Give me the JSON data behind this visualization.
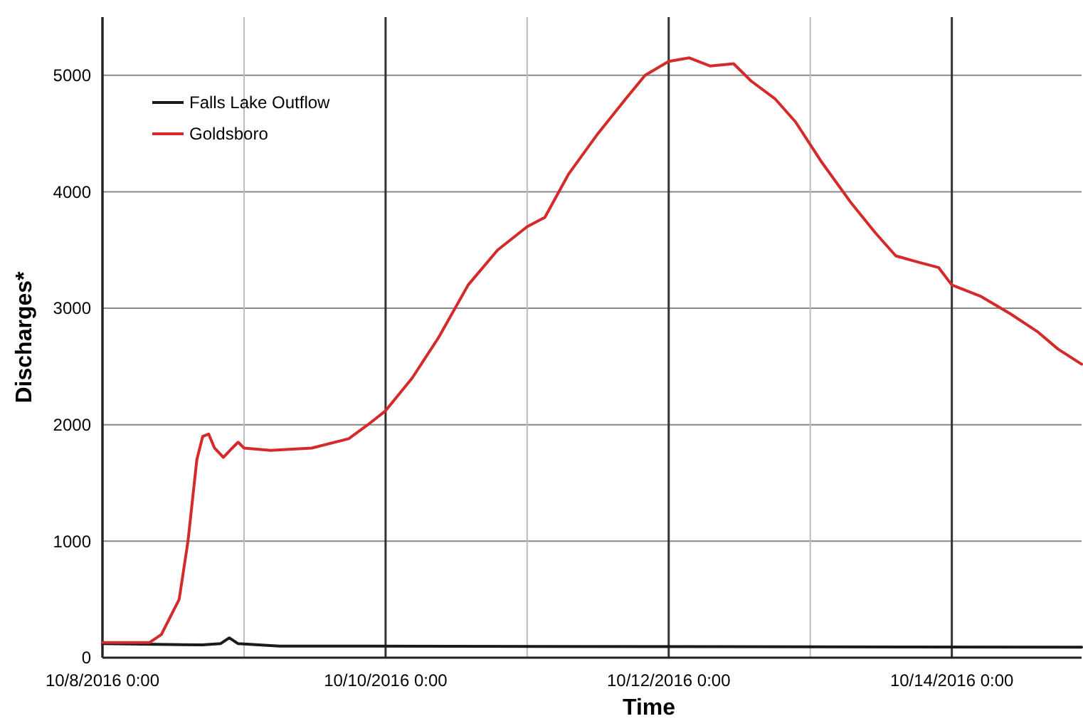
{
  "chart_data": {
    "type": "line",
    "xlabel": "Time",
    "ylabel": "Discharges*",
    "xlim": [
      "2016-10-08T00:00",
      "2016-10-14T22:00"
    ],
    "xticks": [
      {
        "value": "2016-10-08T00:00",
        "label": "10/8/2016 0:00"
      },
      {
        "value": "2016-10-09T00:00",
        "label": null
      },
      {
        "value": "2016-10-10T00:00",
        "label": "10/10/2016 0:00"
      },
      {
        "value": "2016-10-11T00:00",
        "label": null
      },
      {
        "value": "2016-10-12T00:00",
        "label": "10/12/2016 0:00"
      },
      {
        "value": "2016-10-13T00:00",
        "label": null
      },
      {
        "value": "2016-10-14T00:00",
        "label": "10/14/2016 0:00"
      }
    ],
    "ylim": [
      0,
      5500
    ],
    "yticks": [
      0,
      1000,
      2000,
      3000,
      4000,
      5000
    ],
    "grid": true,
    "legend": "top left",
    "marker": "none",
    "line_style": "solid",
    "series": [
      {
        "name": "Falls Lake Outflow",
        "color": "#1a1a1a",
        "x": [
          "2016-10-08T00:00",
          "2016-10-08T17:00",
          "2016-10-08T20:00",
          "2016-10-08T21:30",
          "2016-10-08T23:00",
          "2016-10-09T06:00",
          "2016-10-14T22:00"
        ],
        "values": [
          120,
          110,
          120,
          170,
          120,
          100,
          90
        ]
      },
      {
        "name": "Goldsboro",
        "color": "#d42a2a",
        "x": [
          "2016-10-08T00:00",
          "2016-10-08T08:00",
          "2016-10-08T10:00",
          "2016-10-08T13:00",
          "2016-10-08T14:30",
          "2016-10-08T16:00",
          "2016-10-08T17:00",
          "2016-10-08T18:00",
          "2016-10-08T19:00",
          "2016-10-08T20:30",
          "2016-10-08T22:00",
          "2016-10-08T23:00",
          "2016-10-09T00:00",
          "2016-10-09T04:30",
          "2016-10-09T11:30",
          "2016-10-09T17:45",
          "2016-10-09T21:00",
          "2016-10-10T00:00",
          "2016-10-10T04:30",
          "2016-10-10T09:00",
          "2016-10-10T14:00",
          "2016-10-10T19:00",
          "2016-10-11T00:00",
          "2016-10-11T03:00",
          "2016-10-11T07:00",
          "2016-10-11T12:00",
          "2016-10-11T16:45",
          "2016-10-11T20:00",
          "2016-10-12T00:00",
          "2016-10-12T03:30",
          "2016-10-12T07:00",
          "2016-10-12T11:00",
          "2016-10-12T14:00",
          "2016-10-12T18:00",
          "2016-10-12T21:30",
          "2016-10-13T02:00",
          "2016-10-13T07:00",
          "2016-10-13T11:00",
          "2016-10-13T14:30",
          "2016-10-13T18:00",
          "2016-10-13T21:45",
          "2016-10-14T00:00",
          "2016-10-14T05:00",
          "2016-10-14T10:00",
          "2016-10-14T14:30",
          "2016-10-14T18:00",
          "2016-10-14T22:00"
        ],
        "values": [
          130,
          130,
          200,
          500,
          1000,
          1700,
          1900,
          1920,
          1800,
          1720,
          1800,
          1850,
          1800,
          1780,
          1800,
          1880,
          2000,
          2120,
          2400,
          2750,
          3200,
          3500,
          3700,
          3780,
          4150,
          4500,
          4800,
          5000,
          5120,
          5150,
          5080,
          5100,
          4950,
          4800,
          4600,
          4250,
          3900,
          3650,
          3450,
          3400,
          3350,
          3200,
          3100,
          2950,
          2800,
          2650,
          2520
        ]
      }
    ]
  }
}
